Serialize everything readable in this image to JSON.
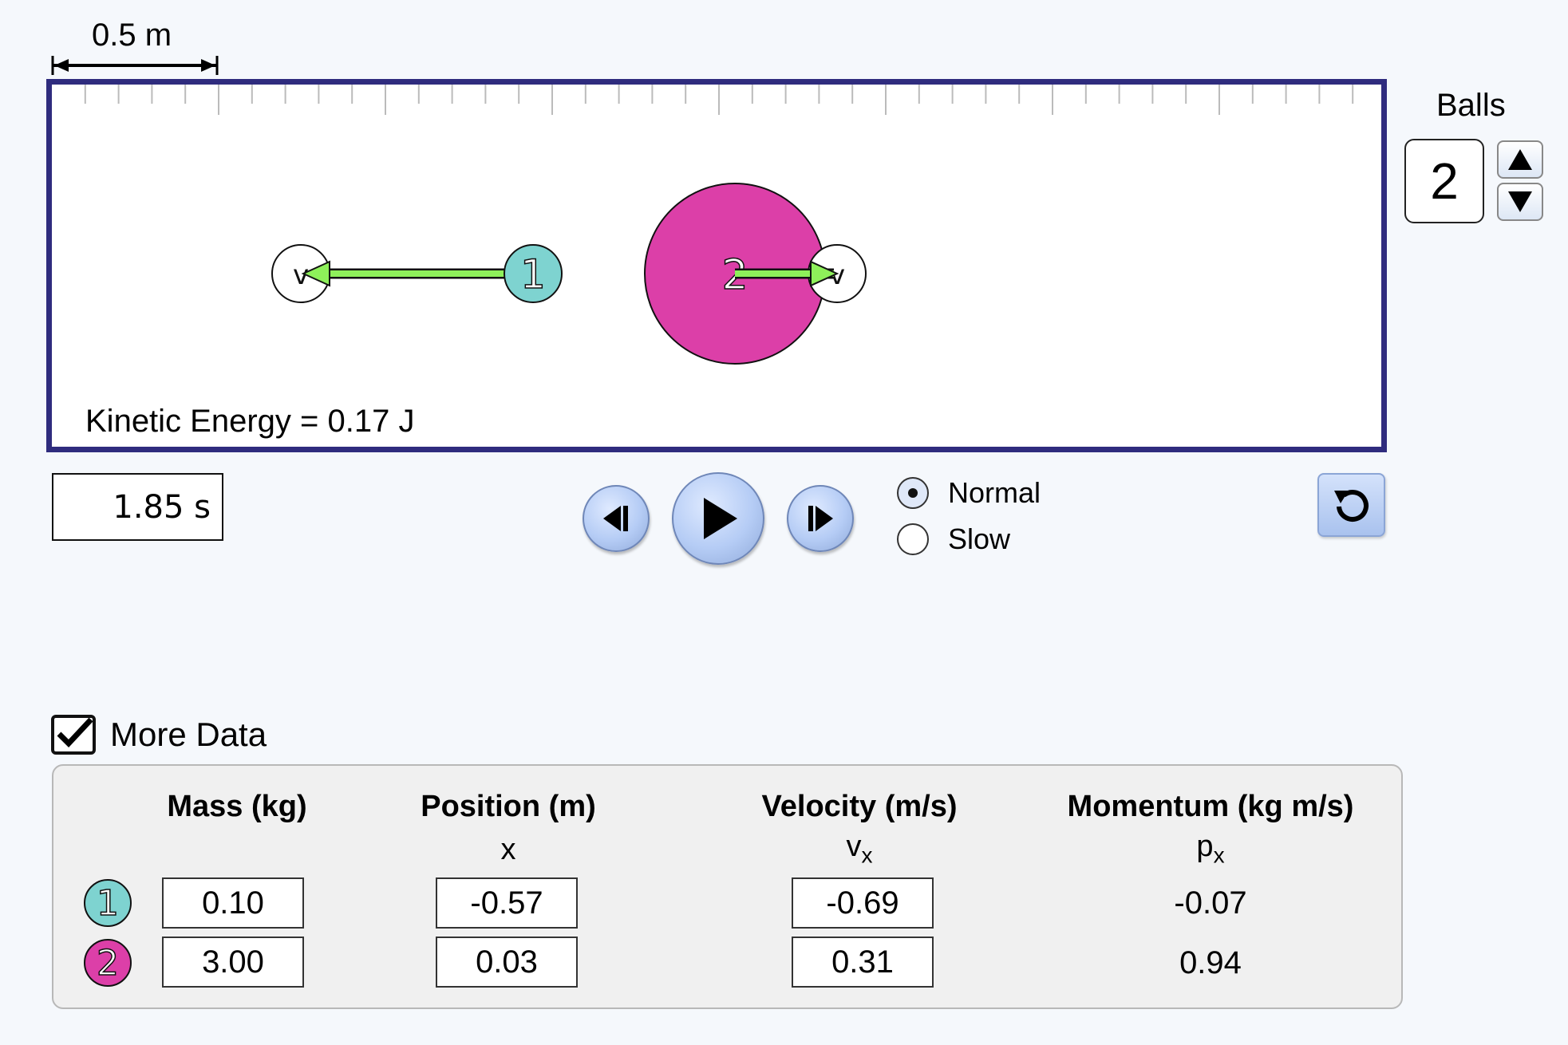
{
  "scale": {
    "label": "0.5 m"
  },
  "play_area": {
    "kinetic_energy_text": "Kinetic Energy = 0.17 J",
    "velocity_marker_label": "v",
    "balls": [
      {
        "number": "1",
        "color": "#7ed3d0",
        "velocity_direction": "left"
      },
      {
        "number": "2",
        "color": "#dc3fa8",
        "velocity_direction": "right"
      }
    ],
    "arrow_color": "#8ef05a"
  },
  "balls_spinner": {
    "label": "Balls",
    "value": "2",
    "up_icon": "triangle-up-icon",
    "down_icon": "triangle-down-icon"
  },
  "time": {
    "value": "1.85 s"
  },
  "controls": {
    "step_back_icon": "step-back-icon",
    "play_icon": "play-icon",
    "step_forward_icon": "step-forward-icon",
    "reset_icon": "reset-icon"
  },
  "speed": {
    "options": [
      "Normal",
      "Slow"
    ],
    "selected": "Normal"
  },
  "more_data": {
    "label": "More Data",
    "checked": true
  },
  "table": {
    "headers": {
      "mass": "Mass (kg)",
      "position": "Position (m)",
      "velocity": "Velocity (m/s)",
      "momentum": "Momentum (kg m/s)"
    },
    "subheaders": {
      "position": "x",
      "velocity_base": "v",
      "velocity_sub": "x",
      "momentum_base": "p",
      "momentum_sub": "x"
    },
    "rows": [
      {
        "ball": "1",
        "color": "#7ed3d0",
        "mass": "0.10",
        "position": "-0.57",
        "velocity": "-0.69",
        "momentum": "-0.07"
      },
      {
        "ball": "2",
        "color": "#dc3fa8",
        "mass": "3.00",
        "position": "0.03",
        "velocity": "0.31",
        "momentum": "0.94"
      }
    ]
  },
  "colors": {
    "border": "#2f2c7e",
    "accent_button": "#b5ccf5"
  }
}
